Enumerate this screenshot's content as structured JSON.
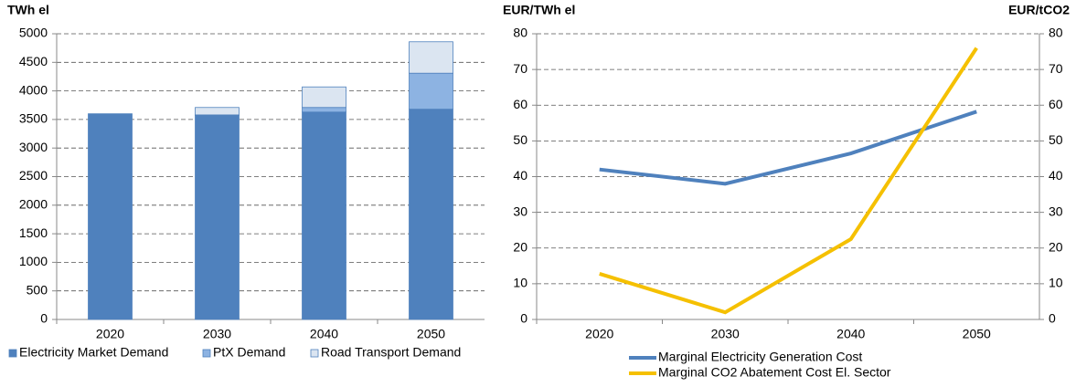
{
  "chart_data": [
    {
      "type": "bar",
      "stacked": true,
      "y_label": "TWh el",
      "categories": [
        "2020",
        "2030",
        "2040",
        "2050"
      ],
      "series": [
        {
          "name": "Electricity Market Demand",
          "color": "#4f81bd",
          "values": [
            3600,
            3570,
            3630,
            3680
          ]
        },
        {
          "name": "PtX Demand",
          "color": "#8db3e2",
          "values": [
            0,
            10,
            80,
            630
          ]
        },
        {
          "name": "Road Transport Demand",
          "color": "#dbe5f1",
          "values": [
            0,
            130,
            360,
            550
          ]
        }
      ],
      "ylim": [
        0,
        5000
      ],
      "yticks": [
        0,
        500,
        1000,
        1500,
        2000,
        2500,
        3000,
        3500,
        4000,
        4500,
        5000
      ],
      "grid": true
    },
    {
      "type": "line",
      "y_label": "EUR/TWh el",
      "y2_label": "EUR/tCO2",
      "categories": [
        "2020",
        "2030",
        "2040",
        "2050"
      ],
      "series": [
        {
          "name": "Marginal Electricity Generation Cost",
          "color": "#4f81bd",
          "values": [
            42,
            38,
            46.5,
            58.2
          ]
        },
        {
          "name": "Marginal CO2 Abatement Cost El. Sector",
          "color": "#f5c000",
          "axis": "y2",
          "values": [
            12.8,
            2,
            22.5,
            76
          ]
        }
      ],
      "ylim": [
        0,
        80
      ],
      "yticks": [
        0,
        10,
        20,
        30,
        40,
        50,
        60,
        70,
        80
      ],
      "y2lim": [
        0,
        80
      ],
      "y2ticks": [
        0,
        10,
        20,
        30,
        40,
        50,
        60,
        70,
        80
      ],
      "grid": true
    }
  ]
}
